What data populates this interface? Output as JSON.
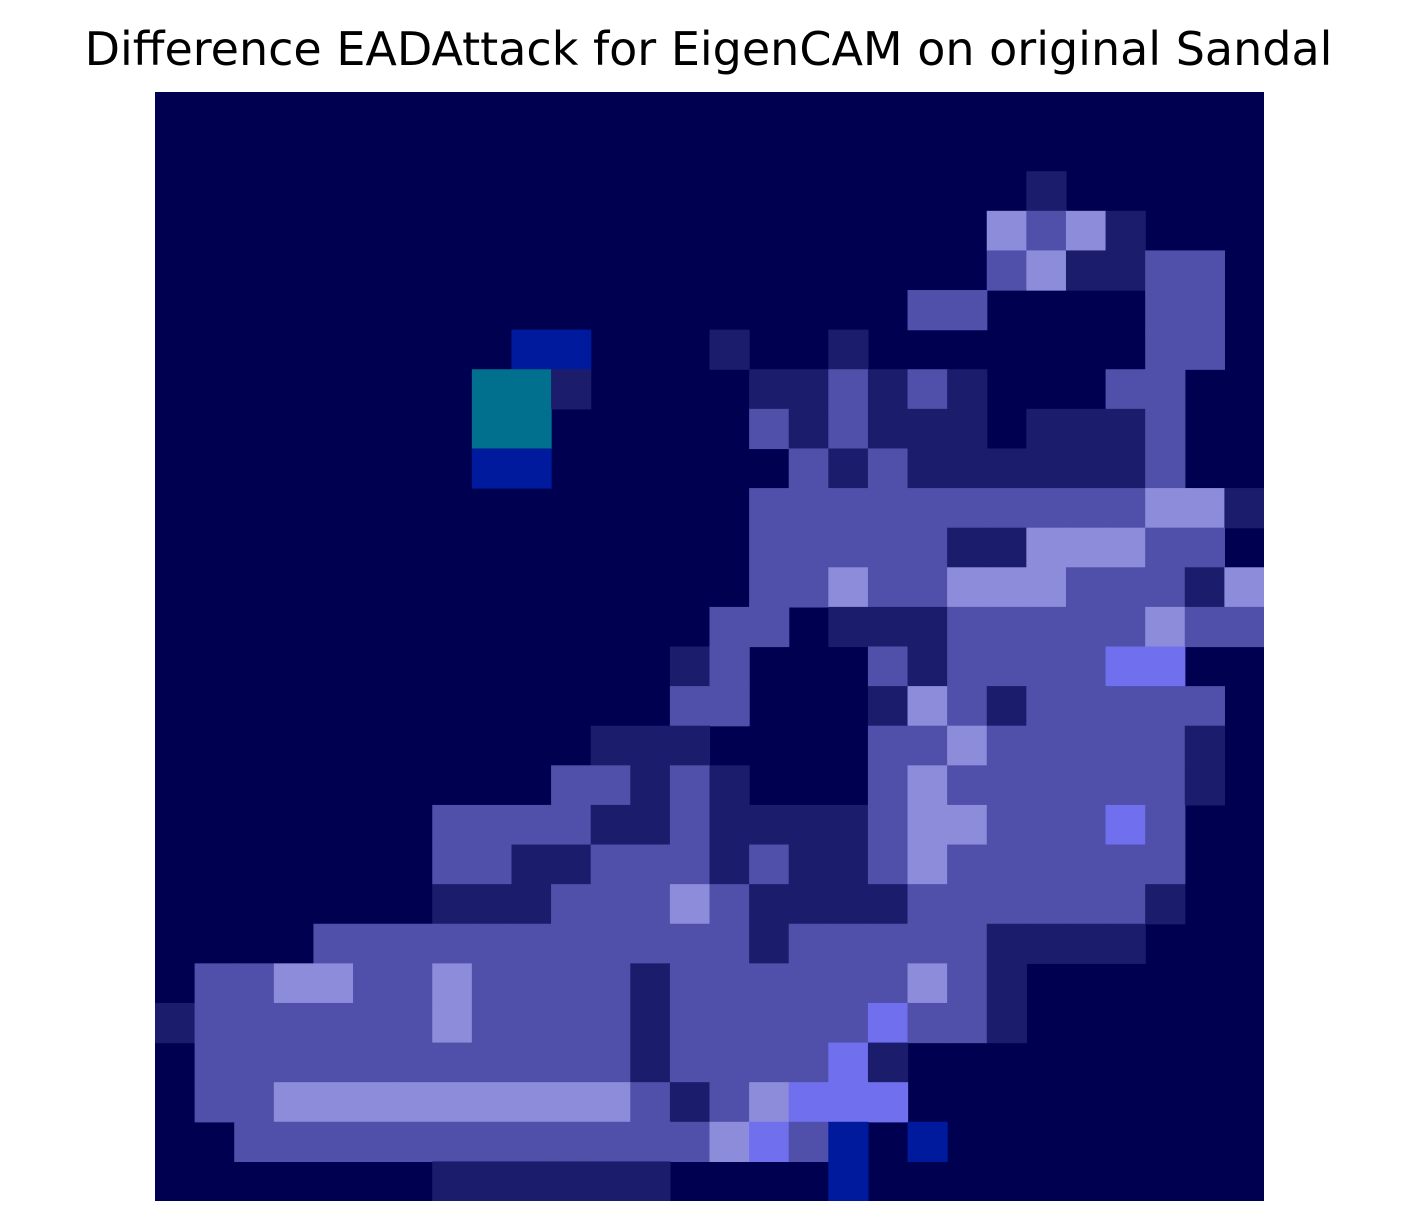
{
  "chart_data": {
    "type": "heatmap",
    "title": "Difference EADAttack for EigenCAM on original Sandal",
    "axes_visible": false,
    "grid": false,
    "legend": "none",
    "rows": 28,
    "cols": 28,
    "colors": {
      "background": "#000050",
      "faint": "#1c1c6c",
      "medium": "#5050aa",
      "bright": "#8c8cda",
      "vivid": "#7070ee",
      "cyan": "#00708e",
      "deep_blue": "#001a9e"
    },
    "legend_values": "0 background, 1 faint, 2 medium, 3 bright, 4 vivid, 5 cyan, 6 deep_blue",
    "values": [
      "0000000000000000000000000000",
      "0000000000000000000000000000",
      "0000000000000000000000100000",
      "0000000000000000000003231000",
      "0000000000000000000002311220",
      "0000000000000000000220000220",
      "0000000006600010010000000220",
      "0000000055100001121210002200",
      "0000000055000002121110111200",
      "0000000066000000212111111200",
      "0000000000000002222222222331",
      "0000000000000002222211333220",
      "0000000000000002232233322213",
      "0000000000000022011122222322",
      "0000000000000120002122224400",
      "0000000000000220001321222220",
      "0000000000011100002232222210",
      "0000000000221210002322222210",
      "0000000222211211112332224200",
      "0000000221122212112322222200",
      "0000000111222321111222222100",
      "0000222222222221222221111000",
      "0223322322221222222321000000",
      "1222222322221222224221000000",
      "0222222222221222241000000000",
      "0223333333332123444000000000",
      "0022222222222234260600000000",
      "0000000111111000060000000000"
    ]
  }
}
